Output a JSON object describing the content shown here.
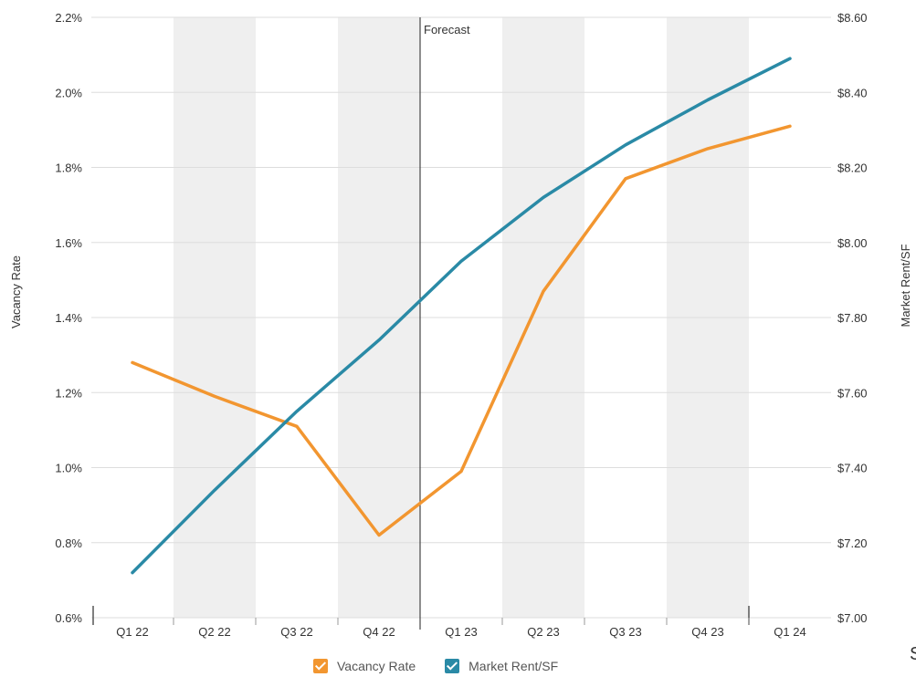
{
  "chart_data": {
    "type": "line",
    "categories": [
      "Q1 22",
      "Q2 22",
      "Q3 22",
      "Q4 22",
      "Q1 23",
      "Q2 23",
      "Q3 23",
      "Q4 23",
      "Q1 24"
    ],
    "series": [
      {
        "name": "Vacancy Rate",
        "axis": "left",
        "color": "#f29630",
        "values": [
          1.28,
          1.19,
          1.11,
          0.82,
          0.99,
          1.47,
          1.77,
          1.85,
          1.91
        ]
      },
      {
        "name": "Market Rent/SF",
        "axis": "right",
        "color": "#2a8aa6",
        "values": [
          7.12,
          7.34,
          7.55,
          7.74,
          7.95,
          8.12,
          8.26,
          8.38,
          8.49
        ]
      }
    ],
    "ylabel": "Vacancy Rate",
    "y2label": "Market Rent/SF",
    "ylim": [
      0.6,
      2.2
    ],
    "y2lim": [
      7.0,
      8.6
    ],
    "yticks": [
      "0.6%",
      "0.8%",
      "1.0%",
      "1.2%",
      "1.4%",
      "1.6%",
      "1.8%",
      "2.0%",
      "2.2%"
    ],
    "y2ticks": [
      "$7.00",
      "$7.20",
      "$7.40",
      "$7.60",
      "$7.80",
      "$8.00",
      "$8.20",
      "$8.40",
      "$8.60"
    ],
    "forecast_label": "Forecast",
    "forecast_after_index": 3,
    "shaded_categories": [
      1,
      3,
      5,
      7
    ],
    "grid": true,
    "legend_position": "bottom"
  },
  "colors": {
    "vacancy": "#f29630",
    "rent": "#2a8aa6",
    "band": "#efefef",
    "grid": "#dddddd"
  },
  "footer": {
    "corner_text": "S"
  }
}
